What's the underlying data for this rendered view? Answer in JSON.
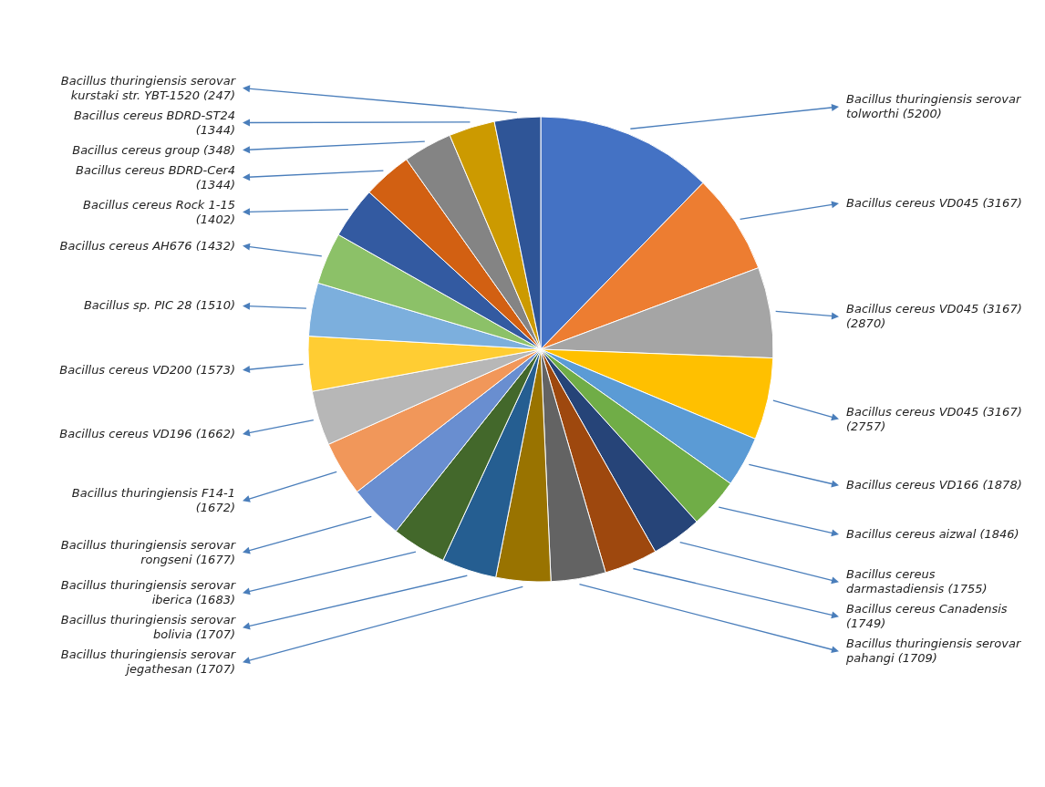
{
  "chart_data": {
    "type": "pie",
    "categories": [
      "Bacillus thuringiensis serovar tolworthi (5200)",
      "Bacillus cereus VD045 (3167)",
      "Bacillus cereus VD045 (3167) (2870)",
      "Bacillus cereus VD045 (3167) (2757)",
      "Bacillus cereus VD166 (1878)",
      "Bacillus cereus aizwal (1846)",
      "Bacillus cereus darmastadiensis (1755)",
      "Bacillus cereus Canadensis (1749)",
      "Bacillus thuringiensis serovar pahangi (1709)",
      "Bacillus thuringiensis serovar jegathesan (1707)",
      "Bacillus thuringiensis serovar bolivia (1707)",
      "Bacillus thuringiensis serovar iberica (1683)",
      "Bacillus thuringiensis serovar rongseni (1677)",
      "Bacillus thuringiensis F14-1 (1672)",
      "Bacillus cereus VD196 (1662)",
      "Bacillus cereus VD200 (1573)",
      "Bacillus sp. PIC 28 (1510)",
      "Bacillus cereus AH676 (1432)",
      "Bacillus cereus Rock 1-15 (1402)",
      "Bacillus cereus BDRD-Cer4 (1344)",
      "Bacillus cereus group (348)",
      "Bacillus cereus BDRD-ST24 (1344)",
      "Bacillus thuringiensis serovar kurstaki str. YBT-1520 (247)"
    ],
    "values": [
      12.3,
      7,
      6.3,
      5.7,
      3.5,
      3.5,
      3.5,
      3.7,
      3.8,
      3.8,
      3.8,
      3.8,
      3.8,
      3.8,
      3.8,
      3.8,
      3.7,
      3.6,
      3.6,
      3.4,
      3.4,
      3.2,
      3.2
    ],
    "colors": [
      "#4472c4",
      "#ed7d31",
      "#a5a5a5",
      "#ffc000",
      "#5b9bd5",
      "#70ad47",
      "#264478",
      "#9e480e",
      "#636363",
      "#997300",
      "#255e91",
      "#43682b",
      "#698ed0",
      "#f1975a",
      "#b7b7b7",
      "#ffcd33",
      "#7cafdd",
      "#8cc168",
      "#335aa1",
      "#d26012",
      "#848484",
      "#cc9a00",
      "#2f5597"
    ]
  }
}
